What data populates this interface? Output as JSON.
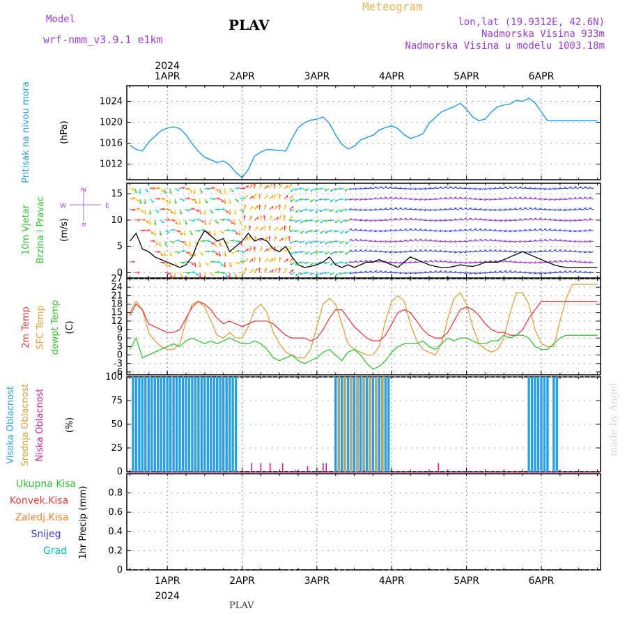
{
  "header": {
    "model_label": "Model",
    "model_name": "wrf-nmm_v3.9.1 e1km",
    "station_title": "PLAV",
    "subtitle": "Meteogram",
    "coords": "lon,lat (19.9312E, 42.6N)",
    "elevation": "Nadmorska Visina 933m",
    "model_elevation": "Nadmorska Visina u modelu 1003.18m"
  },
  "footer": {
    "station": "PLAV",
    "credit": "made by Angel"
  },
  "time_axis": {
    "top_year": "2024",
    "bottom_year": "2024",
    "days": [
      "1APR",
      "2APR",
      "3APR",
      "4APR",
      "5APR",
      "6APR"
    ]
  },
  "panels": {
    "pressure": {
      "ylabel_colored": "Pritisak na nivou mora",
      "unit": "(hPa)",
      "ticks": [
        "1012",
        "1016",
        "1020",
        "1024"
      ]
    },
    "wind": {
      "ylabel_line1": "10m Vjetar",
      "ylabel_line2": "Brzina i Pravac",
      "unit": "(m/s)",
      "ticks": [
        "0",
        "5",
        "10",
        "15"
      ],
      "compass": {
        "w": "W",
        "e": "E",
        "n": "Z",
        "s": "α"
      }
    },
    "temp": {
      "label_2m": "2m Temp",
      "label_sfc": "SFC Temp",
      "label_dew": "dewpt Temp",
      "unit": "(C)",
      "ticks": [
        "-6",
        "-3",
        "0",
        "3",
        "6",
        "9",
        "12",
        "15",
        "18",
        "21",
        "24",
        "27"
      ]
    },
    "cloud": {
      "label_high": "Visoka Oblacnost",
      "label_mid": "Srednja Oblacnost",
      "label_low": "Niska Oblacnost",
      "unit": "(%)",
      "ticks": [
        "0",
        "25",
        "50",
        "75",
        "100"
      ]
    },
    "precip": {
      "legend": [
        "Ukupna Kisa",
        "Konvek.Kisa",
        "Zaledj.Kisa",
        "Snijeg",
        "Grad"
      ],
      "ylabel": "1hr Precip (mm)",
      "ticks": [
        "0",
        "0.2",
        "0.4",
        "0.6",
        "0.8"
      ]
    }
  },
  "colors": {
    "pressure": "#2b9fe0",
    "temp2m": "#e24040",
    "sfc": "#dca240",
    "dew": "#33c433",
    "high": "#2b9fe0",
    "mid": "#dca240",
    "low": "#d0208a",
    "black": "#000000"
  },
  "chart_data": [
    {
      "type": "line",
      "ylabel": "Pritisak na nivou mora (hPa)",
      "ylim": [
        1009,
        1027
      ],
      "x_unit": "hours since 1APR 00UTC",
      "series": [
        {
          "name": "Pritisak na nivou mora",
          "x": [
            -12,
            -10,
            -8,
            -6,
            -4,
            -2,
            0,
            2,
            4,
            6,
            8,
            10,
            12,
            14,
            16,
            18,
            20,
            22,
            24,
            26,
            28,
            30,
            32,
            34,
            36,
            38,
            40,
            42,
            44,
            46,
            48,
            50,
            52,
            54,
            56,
            58,
            60,
            62,
            64,
            66,
            68,
            70,
            72,
            74,
            76,
            78,
            80,
            82,
            84,
            86,
            88,
            90,
            92,
            94,
            96,
            98,
            100,
            102,
            104,
            106,
            108,
            110,
            112,
            114,
            116,
            118,
            120,
            122,
            124,
            126,
            128,
            130,
            132,
            134,
            136,
            138
          ],
          "values": [
            1015.6,
            1014.8,
            1014.5,
            1016.2,
            1017.3,
            1018.4,
            1018.9,
            1019.1,
            1018.8,
            1017.6,
            1015.9,
            1014.4,
            1013.3,
            1012.8,
            1012.3,
            1012.6,
            1011.8,
            1010.4,
            1009.4,
            1011.0,
            1013.5,
            1014.3,
            1014.8,
            1014.7,
            1014.6,
            1014.5,
            1016.9,
            1019.0,
            1019.9,
            1020.4,
            1020.6,
            1021.0,
            1019.8,
            1017.6,
            1015.8,
            1014.9,
            1015.4,
            1016.6,
            1017.1,
            1017.5,
            1018.5,
            1019.0,
            1019.3,
            1018.8,
            1017.6,
            1016.9,
            1017.3,
            1017.8,
            1019.8,
            1020.9,
            1022.0,
            1022.5,
            1023.0,
            1023.6,
            1022.5,
            1021.0,
            1020.3,
            1020.6,
            1022.0,
            1023.0,
            1023.3,
            1023.5,
            1024.2,
            1024.0,
            1024.6,
            1023.7,
            1022.0,
            1020.3,
            1020.3,
            1020.3,
            1020.3,
            1020.3,
            1020.3,
            1020.3,
            1020.3,
            1020.3
          ]
        }
      ]
    },
    {
      "type": "line",
      "ylabel": "10m Vjetar Brzina i Pravac (m/s)",
      "ylim": [
        -1,
        17
      ],
      "series": [
        {
          "name": "Brzina",
          "x": [
            -12,
            -10,
            -8,
            -6,
            -4,
            -2,
            0,
            2,
            4,
            6,
            8,
            10,
            12,
            14,
            16,
            18,
            20,
            22,
            24,
            26,
            28,
            30,
            32,
            34,
            36,
            38,
            40,
            42,
            44,
            46,
            48,
            50,
            52,
            54,
            56,
            58,
            60,
            62,
            64,
            66,
            68,
            70,
            72,
            74,
            76,
            78,
            80,
            82,
            84,
            86,
            88,
            90,
            92,
            94,
            96,
            98,
            100,
            102,
            104,
            106,
            108,
            110,
            112,
            114,
            116,
            118,
            120,
            122,
            124,
            126,
            128,
            130,
            132,
            134,
            136,
            138
          ],
          "values": [
            6,
            7.5,
            4.5,
            4,
            3,
            2.5,
            2,
            1.5,
            1,
            1.5,
            3,
            6,
            8,
            7,
            6,
            6.5,
            4,
            5,
            6,
            7.5,
            6,
            6.5,
            6,
            4.5,
            4,
            5,
            3,
            1.5,
            1,
            1.2,
            1.5,
            2,
            3,
            1.5,
            1,
            1.5,
            1,
            1.5,
            2,
            2,
            2.5,
            2,
            1.5,
            1,
            2,
            3,
            2.5,
            2,
            1.5,
            1.2,
            1,
            1,
            1.2,
            1.5,
            1.3,
            1.2,
            1.5,
            2,
            2,
            2,
            2.5,
            3,
            3.5,
            4,
            3.5,
            3,
            2.5,
            2,
            1.5,
            1.2,
            1,
            1,
            1,
            1,
            1,
            1
          ]
        }
      ]
    },
    {
      "type": "line",
      "ylabel": "(C)",
      "ylim": [
        -7,
        27
      ],
      "series": [
        {
          "name": "2m Temp",
          "x": [
            -12,
            -10,
            -8,
            -6,
            -4,
            -2,
            0,
            2,
            4,
            6,
            8,
            10,
            12,
            14,
            16,
            18,
            20,
            22,
            24,
            26,
            28,
            30,
            32,
            34,
            36,
            38,
            40,
            42,
            44,
            46,
            48,
            50,
            52,
            54,
            56,
            58,
            60,
            62,
            64,
            66,
            68,
            70,
            72,
            74,
            76,
            78,
            80,
            82,
            84,
            86,
            88,
            90,
            92,
            94,
            96,
            98,
            100,
            102,
            104,
            106,
            108,
            110,
            112,
            114,
            116,
            118,
            120,
            122,
            124,
            126,
            128,
            130,
            132,
            134,
            136,
            138
          ],
          "values": [
            14,
            18,
            16,
            11,
            10,
            9,
            8,
            8,
            9,
            13,
            17,
            19,
            18,
            16,
            13,
            11,
            12,
            11,
            10,
            11,
            12,
            12,
            12,
            11,
            9,
            7,
            6,
            6,
            6,
            5,
            6,
            9,
            13,
            16,
            16,
            13,
            10,
            8,
            6,
            5,
            5,
            7,
            11,
            15,
            16,
            15,
            12,
            9,
            7,
            6,
            6,
            8,
            12,
            16,
            17,
            16,
            14,
            11,
            9,
            8,
            8,
            7,
            7,
            9,
            13,
            16,
            19,
            19,
            19,
            19,
            19,
            19,
            19,
            19,
            19,
            19
          ]
        },
        {
          "name": "SFC Temp",
          "x": [
            -12,
            -10,
            -8,
            -6,
            -4,
            -2,
            0,
            2,
            4,
            6,
            8,
            10,
            12,
            14,
            16,
            18,
            20,
            22,
            24,
            26,
            28,
            30,
            32,
            34,
            36,
            38,
            40,
            42,
            44,
            46,
            48,
            50,
            52,
            54,
            56,
            58,
            60,
            62,
            64,
            66,
            68,
            70,
            72,
            74,
            76,
            78,
            80,
            82,
            84,
            86,
            88,
            90,
            92,
            94,
            96,
            98,
            100,
            102,
            104,
            106,
            108,
            110,
            112,
            114,
            116,
            118,
            120,
            122,
            124,
            126,
            128,
            130,
            132,
            134,
            136,
            138
          ],
          "values": [
            15,
            19,
            16,
            8,
            5,
            3,
            2,
            2,
            4,
            12,
            18,
            19,
            17,
            12,
            7,
            6,
            8,
            6,
            6,
            10,
            16,
            18,
            15,
            8,
            4,
            1,
            0,
            -1,
            -1,
            2,
            10,
            18,
            20,
            18,
            11,
            4,
            2,
            1,
            0,
            0,
            3,
            12,
            19,
            21,
            19,
            11,
            5,
            2,
            1,
            0,
            4,
            13,
            20,
            22,
            18,
            10,
            4,
            2,
            1,
            2,
            6,
            15,
            22,
            22,
            18,
            9,
            4,
            3,
            3,
            12,
            20,
            25,
            25,
            25,
            25,
            25
          ]
        },
        {
          "name": "dewpt Temp",
          "x": [
            -12,
            -10,
            -8,
            -6,
            -4,
            -2,
            0,
            2,
            4,
            6,
            8,
            10,
            12,
            14,
            16,
            18,
            20,
            22,
            24,
            26,
            28,
            30,
            32,
            34,
            36,
            38,
            40,
            42,
            44,
            46,
            48,
            50,
            52,
            54,
            56,
            58,
            60,
            62,
            64,
            66,
            68,
            70,
            72,
            74,
            76,
            78,
            80,
            82,
            84,
            86,
            88,
            90,
            92,
            94,
            96,
            98,
            100,
            102,
            104,
            106,
            108,
            110,
            112,
            114,
            116,
            118,
            120,
            122,
            124,
            126,
            128,
            130,
            132,
            134,
            136,
            138
          ],
          "values": [
            2,
            6,
            -1,
            0,
            1,
            2,
            3,
            4,
            3,
            5,
            6,
            5,
            4,
            5,
            4,
            5,
            6,
            5,
            4,
            4,
            5,
            4,
            2,
            -1,
            -2,
            -1,
            0,
            -2,
            -3,
            -2,
            -1,
            1,
            2,
            0,
            -2,
            1,
            2,
            0,
            -3,
            -5,
            -4,
            -2,
            1,
            3,
            4,
            4,
            4,
            5,
            3,
            2,
            4,
            6,
            5,
            6,
            6,
            5,
            4,
            4,
            5,
            5,
            7,
            6,
            7,
            7,
            6,
            3,
            2,
            2,
            4,
            6,
            7,
            7,
            7,
            7,
            7,
            7
          ]
        }
      ]
    },
    {
      "type": "bar",
      "ylabel": "(%)",
      "ylim": [
        0,
        100
      ],
      "series": [
        {
          "name": "Visoka Oblacnost",
          "x": [
            -11,
            -10,
            -9,
            -8,
            -7,
            -6,
            -5,
            -4,
            -3,
            -2,
            -1,
            0,
            1,
            2,
            3,
            4,
            5,
            6,
            7,
            8,
            9,
            10,
            11,
            12,
            13,
            14,
            15,
            16,
            17,
            18,
            19,
            20,
            21,
            22,
            54,
            55,
            56,
            57,
            58,
            59,
            60,
            61,
            62,
            63,
            64,
            65,
            66,
            67,
            68,
            69,
            70,
            71,
            116,
            117,
            118,
            119,
            120,
            121,
            122,
            124,
            125
          ],
          "values": [
            100,
            100,
            100,
            100,
            100,
            100,
            100,
            100,
            100,
            100,
            100,
            100,
            100,
            100,
            100,
            100,
            100,
            100,
            100,
            100,
            100,
            100,
            100,
            100,
            100,
            100,
            100,
            100,
            100,
            100,
            100,
            100,
            100,
            100,
            100,
            100,
            100,
            100,
            100,
            100,
            100,
            100,
            100,
            100,
            100,
            100,
            100,
            100,
            100,
            100,
            100,
            100,
            100,
            100,
            100,
            100,
            100,
            100,
            100,
            100,
            100
          ]
        },
        {
          "name": "Srednja Oblacnost",
          "x": [
            55,
            57,
            59,
            61,
            63,
            65,
            67,
            69
          ],
          "values": [
            100,
            100,
            100,
            100,
            100,
            100,
            100,
            100
          ]
        },
        {
          "name": "Niska Oblacnost",
          "x": [
            27,
            30,
            33,
            37,
            41,
            45,
            50,
            51,
            63,
            87
          ],
          "values": [
            9,
            9,
            9,
            9,
            2,
            6,
            9,
            9,
            2,
            9
          ]
        }
      ]
    },
    {
      "type": "bar",
      "ylabel": "1hr Precip (mm)",
      "ylim": [
        0,
        1
      ],
      "series": [
        {
          "name": "Ukupna Kisa",
          "x": [],
          "values": []
        },
        {
          "name": "Konvek.Kisa",
          "x": [],
          "values": []
        },
        {
          "name": "Zaledj.Kisa",
          "x": [],
          "values": []
        },
        {
          "name": "Snijeg",
          "x": [],
          "values": []
        },
        {
          "name": "Grad",
          "x": [],
          "values": []
        }
      ]
    }
  ]
}
